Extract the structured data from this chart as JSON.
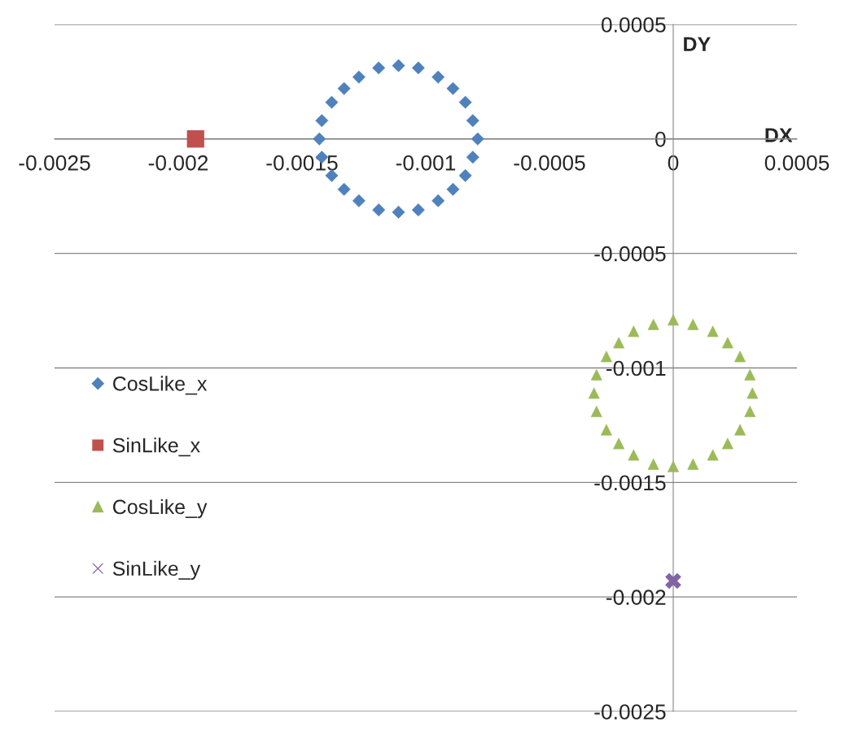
{
  "chart_data": {
    "type": "scatter",
    "xlabel": "DX",
    "ylabel": "DY",
    "xlim": [
      -0.0025,
      0.0005
    ],
    "xticks": [
      -0.0025,
      -0.002,
      -0.0015,
      -0.001,
      -0.0005,
      0,
      0.0005
    ],
    "ylim": [
      -0.0025,
      0.0005
    ],
    "yticks": [
      -0.0025,
      -0.002,
      -0.0015,
      -0.001,
      -0.0005,
      0,
      0.0005
    ],
    "grid": "y",
    "legend": "left",
    "series": [
      {
        "name": "CosLike_x",
        "color": "#4f81bd",
        "marker": "diamond",
        "x": [
          -0.00079,
          -0.00081,
          -0.00084,
          -0.00089,
          -0.00095,
          -0.00103,
          -0.00111,
          -0.00119,
          -0.00127,
          -0.00133,
          -0.00138,
          -0.00142,
          -0.00143,
          -0.00142,
          -0.00138,
          -0.00133,
          -0.00127,
          -0.00119,
          -0.00111,
          -0.00103,
          -0.00095,
          -0.00089,
          -0.00084,
          -0.00081
        ],
        "values": [
          0,
          8e-05,
          0.00016,
          0.00022,
          0.00027,
          0.00031,
          0.00032,
          0.00031,
          0.00027,
          0.00022,
          0.00016,
          8e-05,
          0,
          -8e-05,
          -0.00016,
          -0.00022,
          -0.00027,
          -0.00031,
          -0.00032,
          -0.00031,
          -0.00027,
          -0.00022,
          -0.00016,
          -8e-05
        ]
      },
      {
        "name": "SinLike_x",
        "color": "#c0504d",
        "marker": "square",
        "x": [
          -0.00193
        ],
        "values": [
          0
        ]
      },
      {
        "name": "CosLike_y",
        "color": "#9bbb59",
        "marker": "triangle",
        "x": [
          0.00032,
          0.00031,
          0.00027,
          0.00022,
          0.00016,
          8e-05,
          0,
          -8e-05,
          -0.00016,
          -0.00022,
          -0.00027,
          -0.00031,
          -0.00032,
          -0.00031,
          -0.00027,
          -0.00022,
          -0.00016,
          -8e-05,
          0,
          8e-05,
          0.00016,
          0.00022,
          0.00027,
          0.00031
        ],
        "values": [
          -0.00111,
          -0.00103,
          -0.00095,
          -0.00089,
          -0.00084,
          -0.00081,
          -0.00079,
          -0.00081,
          -0.00084,
          -0.00089,
          -0.00095,
          -0.00103,
          -0.00111,
          -0.00119,
          -0.00127,
          -0.00133,
          -0.00138,
          -0.00142,
          -0.00143,
          -0.00142,
          -0.00138,
          -0.00133,
          -0.00127,
          -0.00119
        ]
      },
      {
        "name": "SinLike_y",
        "color": "#8064a2",
        "marker": "cross",
        "x": [
          0
        ],
        "values": [
          -0.00193
        ]
      }
    ]
  }
}
